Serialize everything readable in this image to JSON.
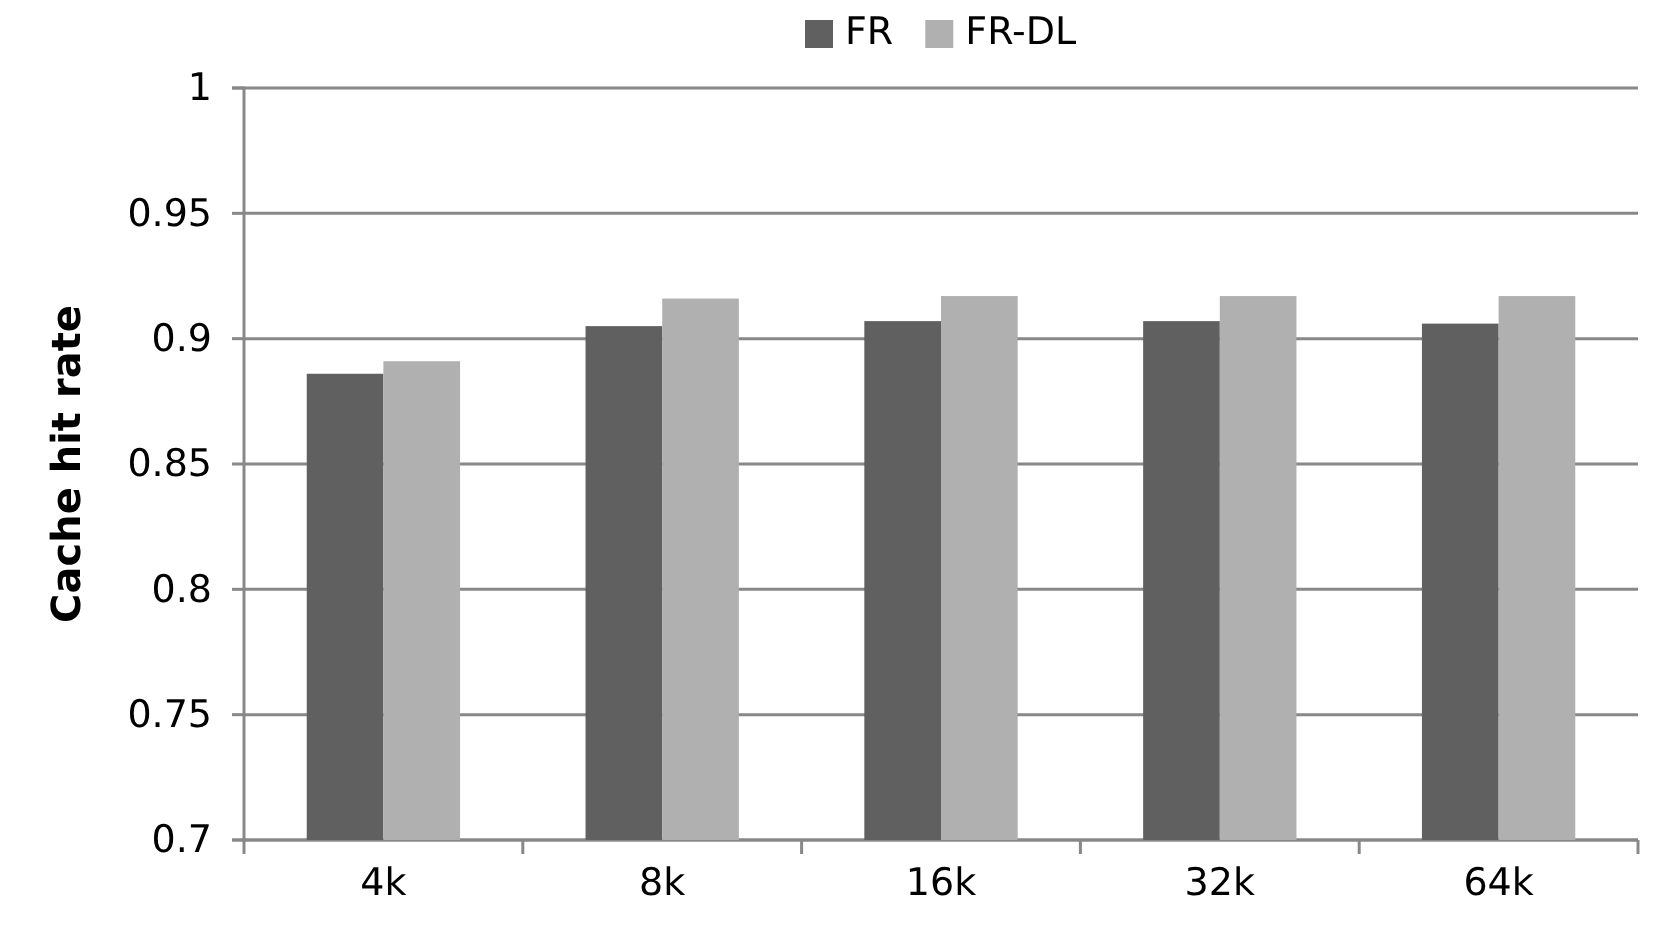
{
  "chart_data": {
    "type": "bar",
    "ylabel": "Cache hit rate",
    "categories": [
      "4k",
      "8k",
      "16k",
      "32k",
      "64k"
    ],
    "series": [
      {
        "name": "FR",
        "color": "#606060",
        "values": [
          0.886,
          0.905,
          0.907,
          0.907,
          0.906
        ]
      },
      {
        "name": "FR-DL",
        "color": "#b0b0b0",
        "values": [
          0.891,
          0.916,
          0.917,
          0.917,
          0.917
        ]
      }
    ],
    "ylim": [
      0.7,
      1
    ],
    "yticks": [
      0.7,
      0.75,
      0.8,
      0.85,
      0.9,
      0.95,
      1
    ],
    "grid": "y",
    "legend": "top"
  }
}
